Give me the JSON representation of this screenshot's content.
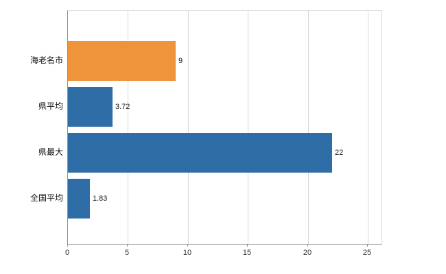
{
  "chart_data": {
    "type": "bar",
    "orientation": "horizontal",
    "title": "",
    "categories": [
      "海老名市",
      "県平均",
      "県最大",
      "全国平均"
    ],
    "values": [
      9,
      3.72,
      22,
      1.83
    ],
    "value_labels": [
      "9",
      "3.72",
      "22",
      "1.83"
    ],
    "bar_colors": [
      "#f0943c",
      "#2f6da6",
      "#2f6da6",
      "#2f6da6"
    ],
    "xlim": [
      0,
      25
    ],
    "x_ticks": [
      "0",
      "5",
      "10",
      "15",
      "20",
      "25"
    ],
    "x_tick_values": [
      0,
      5,
      10,
      15,
      20,
      25
    ],
    "grid": "vertical",
    "legend": "none"
  },
  "colors": {
    "grid": "#d9d9d9",
    "axis": "#8c8c8c",
    "text": "#1a1a1a",
    "orange": "#f0943c",
    "blue": "#2f6da6"
  }
}
